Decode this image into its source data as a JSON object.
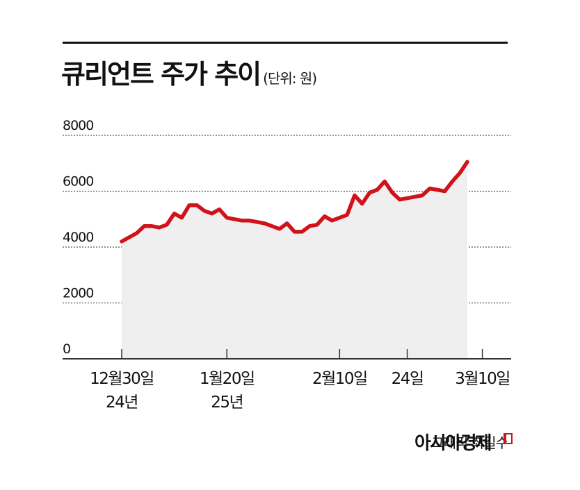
{
  "title": "큐리언트 주가 추이",
  "unit": "(단위: 원)",
  "credit": "그래픽 최길수",
  "brand": "아시아경제",
  "colors": {
    "line": "#d0121b",
    "area": "#efefef",
    "axis": "#333333",
    "grid": "#555555"
  },
  "chart_data": {
    "type": "line",
    "ylim": [
      0,
      8000
    ],
    "yticks": [
      0,
      2000,
      4000,
      6000,
      8000
    ],
    "grid": "dotted horizontal",
    "x_ticks": [
      {
        "label": "12월30일",
        "label2": "24년"
      },
      {
        "label": "1월20일",
        "label2": "25년"
      },
      {
        "label": "2월10일",
        "label2": ""
      },
      {
        "label": "24일",
        "label2": ""
      },
      {
        "label": "3월10일",
        "label2": ""
      }
    ],
    "tick_index": [
      0,
      14,
      29,
      38,
      48
    ],
    "series": [
      {
        "values": [
          4200,
          4350,
          4500,
          4750,
          4750,
          4700,
          4800,
          5200,
          5050,
          5500,
          5500,
          5300,
          5200,
          5350,
          5050,
          5000,
          4950,
          4950,
          4900,
          4850,
          4750,
          4650,
          4850,
          4550,
          4550,
          4750,
          4800,
          5100,
          4950,
          5050,
          5150,
          5850,
          5550,
          5950,
          6050,
          6350,
          5950,
          5700,
          5750,
          5800,
          5850,
          6100,
          6050,
          6000,
          6350,
          6650,
          7050
        ]
      }
    ]
  }
}
